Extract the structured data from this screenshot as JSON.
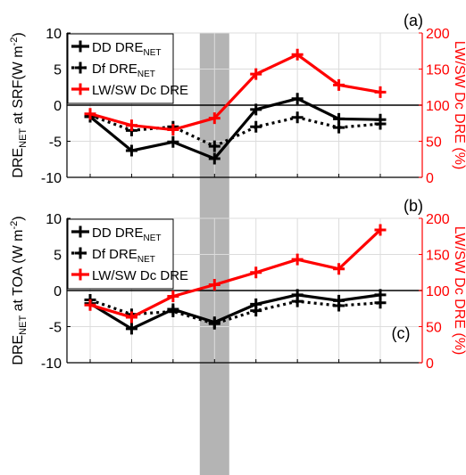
{
  "colors": {
    "black": "#000000",
    "red": "#ff0000",
    "grid": "#dcdcdc",
    "shade": "#b4b4b4"
  },
  "chart_data": [
    {
      "panel_label": "(a)",
      "type": "line",
      "x": [
        1,
        2,
        3,
        4,
        5,
        6,
        7,
        8
      ],
      "shaded_x": 4,
      "ylabel_left": {
        "main": "DRE",
        "sub": "NET",
        "tail": " at SRF(W m",
        "sup": "-2",
        "close": ")"
      },
      "ylabel_right": "LW/SW Dc DRE (%)",
      "ylim_left": [
        -10,
        10
      ],
      "yticks_left": [
        -10,
        -5,
        0,
        5,
        10
      ],
      "ylim_right": [
        0,
        200
      ],
      "yticks_right": [
        0,
        50,
        100,
        150,
        200
      ],
      "grid": true,
      "legend_position": "top-left",
      "series": [
        {
          "name": {
            "main": "DD DRE",
            "sub": "NET"
          },
          "axis": "left",
          "style": "solid",
          "color": "#000000",
          "values": [
            -1.6,
            -6.3,
            -5.1,
            -7.4,
            -0.6,
            0.9,
            -1.9,
            -2.0
          ]
        },
        {
          "name": {
            "main": "Df DRE",
            "sub": "NET"
          },
          "axis": "left",
          "style": "dotted",
          "color": "#000000",
          "values": [
            -1.4,
            -3.5,
            -3.0,
            -5.7,
            -3.0,
            -1.7,
            -3.1,
            -2.6
          ]
        },
        {
          "name": {
            "main": "LW/SW Dc DRE",
            "sub": ""
          },
          "axis": "right",
          "style": "solid",
          "color": "#ff0000",
          "values": [
            88,
            72,
            66,
            82,
            143,
            170,
            128,
            118
          ]
        }
      ]
    },
    {
      "panel_label": "(b)",
      "type": "line",
      "x": [
        1,
        2,
        3,
        4,
        5,
        6,
        7,
        8
      ],
      "shaded_x": 4,
      "ylabel_left": {
        "main": "DRE",
        "sub": "NET",
        "tail": " at TOA (W m",
        "sup": "-2",
        "close": ")"
      },
      "ylabel_right": "LW/SW Dc DRE (%)",
      "ylim_left": [
        -10,
        10
      ],
      "yticks_left": [
        -10,
        -5,
        0,
        5,
        10
      ],
      "ylim_right": [
        0,
        200
      ],
      "yticks_right": [
        0,
        50,
        100,
        150,
        200
      ],
      "grid": true,
      "legend_position": "top-left",
      "series": [
        {
          "name": {
            "main": "DD DRE",
            "sub": "NET"
          },
          "axis": "left",
          "style": "solid",
          "color": "#000000",
          "values": [
            -1.8,
            -5.3,
            -2.6,
            -4.4,
            -1.9,
            -0.6,
            -1.4,
            -0.6
          ]
        },
        {
          "name": {
            "main": "Df DRE",
            "sub": "NET"
          },
          "axis": "left",
          "style": "dotted",
          "color": "#000000",
          "values": [
            -1.3,
            -3.3,
            -2.9,
            -4.6,
            -2.8,
            -1.5,
            -2.1,
            -1.7
          ]
        },
        {
          "name": {
            "main": "LW/SW Dc DRE",
            "sub": ""
          },
          "axis": "right",
          "style": "solid",
          "color": "#ff0000",
          "values": [
            80,
            63,
            92,
            108,
            125,
            143,
            130,
            184
          ]
        }
      ]
    }
  ],
  "panel_c_label": "(c)"
}
